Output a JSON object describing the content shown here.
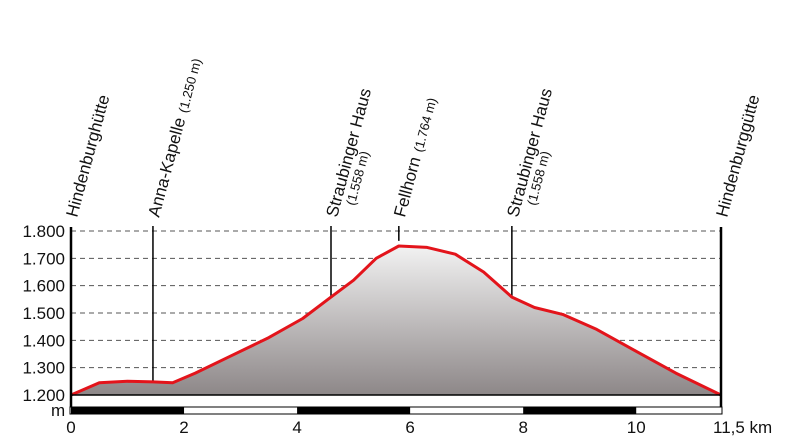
{
  "chart_data": {
    "type": "area",
    "title": "",
    "xlabel": "",
    "ylabel": "",
    "xlim": [
      0,
      11.5
    ],
    "ylim": [
      1200,
      1800
    ],
    "y_unit": "m",
    "x_unit": "km",
    "grid": "horizontal dashed",
    "x_ticks": [
      {
        "value": 0,
        "label": "0"
      },
      {
        "value": 2,
        "label": "2"
      },
      {
        "value": 4,
        "label": "4"
      },
      {
        "value": 6,
        "label": "6"
      },
      {
        "value": 8,
        "label": "8"
      },
      {
        "value": 10,
        "label": "10"
      },
      {
        "value": 11.5,
        "label": "11,5 km"
      }
    ],
    "y_ticks": [
      {
        "value": 1200,
        "label": "1.200"
      },
      {
        "value": 1300,
        "label": "1.300"
      },
      {
        "value": 1400,
        "label": "1.400"
      },
      {
        "value": 1500,
        "label": "1.500"
      },
      {
        "value": 1600,
        "label": "1.600"
      },
      {
        "value": 1700,
        "label": "1.700"
      },
      {
        "value": 1800,
        "label": "1.800"
      }
    ],
    "profile": [
      {
        "x": 0.0,
        "y": 1200
      },
      {
        "x": 0.5,
        "y": 1245
      },
      {
        "x": 1.0,
        "y": 1250
      },
      {
        "x": 1.45,
        "y": 1248
      },
      {
        "x": 1.8,
        "y": 1245
      },
      {
        "x": 2.2,
        "y": 1280
      },
      {
        "x": 2.8,
        "y": 1340
      },
      {
        "x": 3.5,
        "y": 1410
      },
      {
        "x": 4.1,
        "y": 1480
      },
      {
        "x": 4.6,
        "y": 1558
      },
      {
        "x": 5.0,
        "y": 1620
      },
      {
        "x": 5.4,
        "y": 1700
      },
      {
        "x": 5.8,
        "y": 1745
      },
      {
        "x": 6.3,
        "y": 1740
      },
      {
        "x": 6.8,
        "y": 1715
      },
      {
        "x": 7.3,
        "y": 1650
      },
      {
        "x": 7.8,
        "y": 1558
      },
      {
        "x": 8.2,
        "y": 1520
      },
      {
        "x": 8.7,
        "y": 1495
      },
      {
        "x": 9.3,
        "y": 1440
      },
      {
        "x": 10.0,
        "y": 1360
      },
      {
        "x": 10.7,
        "y": 1280
      },
      {
        "x": 11.5,
        "y": 1200
      }
    ],
    "waypoints": [
      {
        "name": "Hindenburghütte",
        "elevation": "",
        "x": 0
      },
      {
        "name": "Anna-Kapelle",
        "elevation": "(1.250 m)",
        "x": 1.45
      },
      {
        "name": "Straubinger Haus",
        "elevation": "(1.558 m)",
        "x": 4.6
      },
      {
        "name": "Fellhorn",
        "elevation": "(1.764 m)",
        "x": 5.8
      },
      {
        "name": "Straubinger Haus",
        "elevation": "(1.558 m)",
        "x": 7.8
      },
      {
        "name": "Hindenburggütte",
        "elevation": "",
        "x": 11.5
      }
    ],
    "colors": {
      "profile_line": "#e3141b",
      "fill_top": "#f2f2f2",
      "fill_bottom": "#8d8788",
      "grid": "#555555",
      "axis": "#000000"
    }
  }
}
